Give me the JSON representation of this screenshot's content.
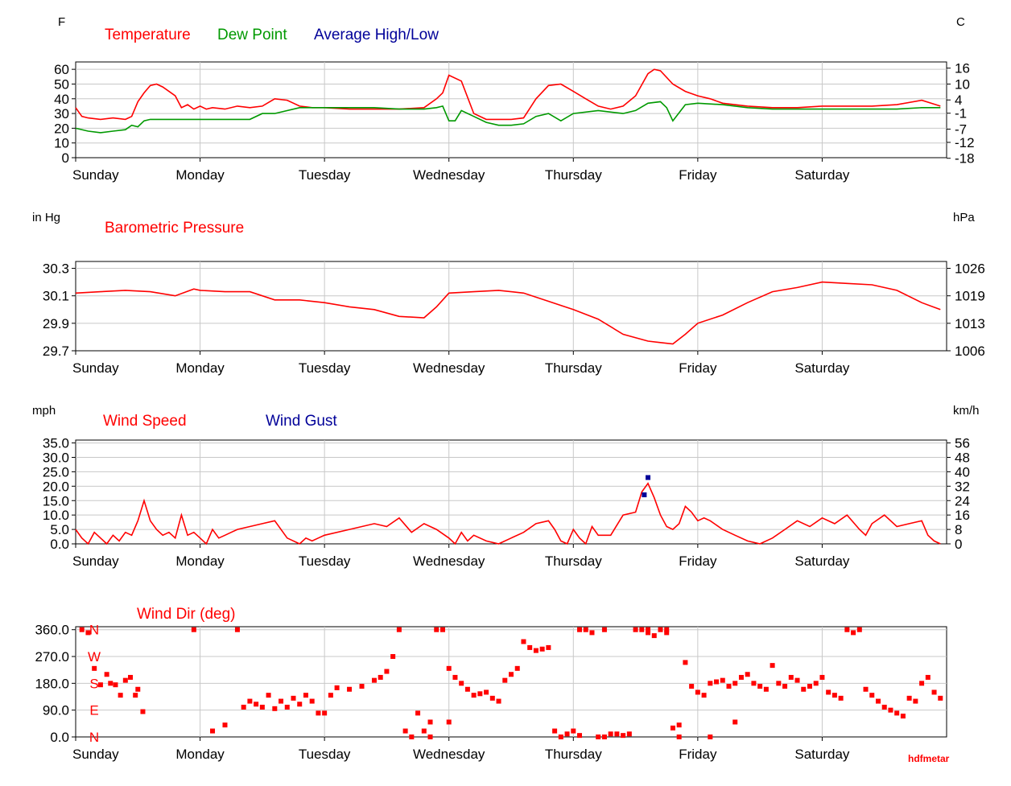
{
  "credit": "hdfmetar",
  "day_labels": [
    "Sunday",
    "Monday",
    "Tuesday",
    "Wednesday",
    "Thursday",
    "Friday",
    "Saturday"
  ],
  "chart_data": [
    {
      "type": "line",
      "left_unit": "F",
      "right_unit": "C",
      "legend": [
        {
          "label": "Temperature",
          "color": "#ff0000"
        },
        {
          "label": "Dew Point",
          "color": "#009900"
        },
        {
          "label": "Average High/Low",
          "color": "#000099"
        }
      ],
      "xlim": [
        0,
        7
      ],
      "ylim": [
        0,
        65
      ],
      "yticks": [
        0,
        10,
        20,
        30,
        40,
        50,
        60
      ],
      "right_ticks": [
        {
          "label": "16",
          "value": 60.8
        },
        {
          "label": "10",
          "value": 50
        },
        {
          "label": "4",
          "value": 39.2
        },
        {
          "label": "-1",
          "value": 30.2
        },
        {
          "label": "-7",
          "value": 19.4
        },
        {
          "label": "-12",
          "value": 10.4
        },
        {
          "label": "-18",
          "value": -0.4
        }
      ],
      "series": [
        {
          "name": "Temperature",
          "color": "#ff0000",
          "x": [
            0,
            0.05,
            0.1,
            0.2,
            0.3,
            0.4,
            0.45,
            0.5,
            0.55,
            0.6,
            0.65,
            0.7,
            0.8,
            0.85,
            0.9,
            0.95,
            1.0,
            1.05,
            1.1,
            1.2,
            1.3,
            1.4,
            1.5,
            1.6,
            1.7,
            1.8,
            1.9,
            2.0,
            2.2,
            2.4,
            2.6,
            2.8,
            2.9,
            2.95,
            3.0,
            3.1,
            3.2,
            3.3,
            3.4,
            3.5,
            3.6,
            3.7,
            3.8,
            3.9,
            4.0,
            4.1,
            4.2,
            4.3,
            4.4,
            4.5,
            4.6,
            4.65,
            4.7,
            4.8,
            4.9,
            5.0,
            5.1,
            5.2,
            5.4,
            5.6,
            5.8,
            6.0,
            6.2,
            6.4,
            6.6,
            6.8,
            6.95
          ],
          "y": [
            34,
            28,
            27,
            26,
            27,
            26,
            28,
            38,
            44,
            49,
            50,
            48,
            42,
            34,
            36,
            33,
            35,
            33,
            34,
            33,
            35,
            34,
            35,
            40,
            39,
            35,
            34,
            34,
            33,
            33,
            33,
            34,
            40,
            44,
            56,
            52,
            30,
            26,
            26,
            26,
            27,
            40,
            49,
            50,
            45,
            40,
            35,
            33,
            35,
            42,
            57,
            60,
            59,
            50,
            45,
            42,
            40,
            37,
            35,
            34,
            34,
            35,
            35,
            35,
            36,
            39,
            35
          ]
        },
        {
          "name": "Dew Point",
          "color": "#009900",
          "x": [
            0,
            0.1,
            0.2,
            0.3,
            0.4,
            0.45,
            0.5,
            0.55,
            0.6,
            0.7,
            0.8,
            1.0,
            1.2,
            1.4,
            1.5,
            1.6,
            1.8,
            2.0,
            2.2,
            2.4,
            2.6,
            2.8,
            2.9,
            2.95,
            3.0,
            3.05,
            3.1,
            3.2,
            3.3,
            3.4,
            3.5,
            3.6,
            3.7,
            3.8,
            3.9,
            4.0,
            4.2,
            4.4,
            4.5,
            4.6,
            4.7,
            4.75,
            4.8,
            4.9,
            5.0,
            5.2,
            5.4,
            5.6,
            5.8,
            6.0,
            6.2,
            6.4,
            6.6,
            6.8,
            6.95
          ],
          "y": [
            20,
            18,
            17,
            18,
            19,
            22,
            21,
            25,
            26,
            26,
            26,
            26,
            26,
            26,
            30,
            30,
            34,
            34,
            34,
            34,
            33,
            33,
            34,
            35,
            25,
            25,
            32,
            28,
            24,
            22,
            22,
            23,
            28,
            30,
            25,
            30,
            32,
            30,
            32,
            37,
            38,
            34,
            25,
            36,
            37,
            36,
            34,
            33,
            33,
            33,
            33,
            33,
            33,
            34,
            34
          ]
        }
      ]
    },
    {
      "type": "line",
      "left_unit": "in Hg",
      "right_unit": "hPa",
      "legend": [
        {
          "label": "Barometric Pressure",
          "color": "#ff0000"
        }
      ],
      "xlim": [
        0,
        7
      ],
      "ylim": [
        29.7,
        30.35
      ],
      "yticks": [
        29.7,
        29.9,
        30.1,
        30.3
      ],
      "ytick_labels": [
        "29.7",
        "29.9",
        "30.1",
        "30.3"
      ],
      "right_ticks": [
        {
          "label": "1006",
          "value": 29.7
        },
        {
          "label": "1013",
          "value": 29.9
        },
        {
          "label": "1019",
          "value": 30.1
        },
        {
          "label": "1026",
          "value": 30.3
        }
      ],
      "series": [
        {
          "name": "Barometric Pressure",
          "color": "#ff0000",
          "x": [
            0,
            0.2,
            0.4,
            0.6,
            0.8,
            0.95,
            1.0,
            1.2,
            1.4,
            1.6,
            1.8,
            2.0,
            2.2,
            2.4,
            2.6,
            2.8,
            2.9,
            3.0,
            3.2,
            3.4,
            3.6,
            3.8,
            4.0,
            4.2,
            4.4,
            4.6,
            4.7,
            4.8,
            4.9,
            5.0,
            5.2,
            5.4,
            5.6,
            5.8,
            6.0,
            6.2,
            6.4,
            6.6,
            6.8,
            6.95
          ],
          "y": [
            30.12,
            30.13,
            30.14,
            30.13,
            30.1,
            30.15,
            30.14,
            30.13,
            30.13,
            30.07,
            30.07,
            30.05,
            30.02,
            30.0,
            29.95,
            29.94,
            30.02,
            30.12,
            30.13,
            30.14,
            30.12,
            30.06,
            30.0,
            29.93,
            29.82,
            29.77,
            29.76,
            29.75,
            29.82,
            29.9,
            29.96,
            30.05,
            30.13,
            30.16,
            30.2,
            30.19,
            30.18,
            30.14,
            30.05,
            30.0
          ]
        }
      ]
    },
    {
      "type": "line",
      "left_unit": "mph",
      "right_unit": "km/h",
      "legend": [
        {
          "label": "Wind Speed",
          "color": "#ff0000"
        },
        {
          "label": "Wind Gust",
          "color": "#000099"
        }
      ],
      "xlim": [
        0,
        7
      ],
      "ylim": [
        0,
        36
      ],
      "yticks": [
        0,
        5,
        10,
        15,
        20,
        25,
        30,
        35
      ],
      "ytick_labels": [
        "0.0",
        "5.0",
        "10.0",
        "15.0",
        "20.0",
        "25.0",
        "30.0",
        "35.0"
      ],
      "right_ticks": [
        {
          "label": "0",
          "value": 0
        },
        {
          "label": "8",
          "value": 5
        },
        {
          "label": "16",
          "value": 10
        },
        {
          "label": "24",
          "value": 15
        },
        {
          "label": "32",
          "value": 20
        },
        {
          "label": "40",
          "value": 25
        },
        {
          "label": "48",
          "value": 30
        },
        {
          "label": "56",
          "value": 35
        }
      ],
      "series": [
        {
          "name": "Wind Speed",
          "color": "#ff0000",
          "x": [
            0,
            0.05,
            0.1,
            0.15,
            0.2,
            0.25,
            0.3,
            0.35,
            0.4,
            0.45,
            0.5,
            0.55,
            0.6,
            0.65,
            0.7,
            0.75,
            0.8,
            0.85,
            0.9,
            0.95,
            1.0,
            1.05,
            1.1,
            1.15,
            1.2,
            1.25,
            1.3,
            1.4,
            1.5,
            1.6,
            1.7,
            1.8,
            1.85,
            1.9,
            1.95,
            2.0,
            2.2,
            2.4,
            2.5,
            2.6,
            2.7,
            2.8,
            2.9,
            3.0,
            3.05,
            3.1,
            3.15,
            3.2,
            3.3,
            3.4,
            3.5,
            3.6,
            3.7,
            3.8,
            3.85,
            3.9,
            3.95,
            4.0,
            4.05,
            4.1,
            4.15,
            4.2,
            4.3,
            4.4,
            4.5,
            4.55,
            4.6,
            4.65,
            4.7,
            4.75,
            4.8,
            4.85,
            4.9,
            4.95,
            5.0,
            5.05,
            5.1,
            5.2,
            5.3,
            5.4,
            5.5,
            5.6,
            5.7,
            5.8,
            5.9,
            6.0,
            6.1,
            6.2,
            6.3,
            6.35,
            6.4,
            6.5,
            6.6,
            6.7,
            6.8,
            6.85,
            6.9,
            6.95
          ],
          "y": [
            5,
            2,
            0,
            4,
            2,
            0,
            3,
            1,
            4,
            3,
            8,
            15,
            8,
            5,
            3,
            4,
            2,
            10,
            3,
            4,
            2,
            0,
            5,
            2,
            3,
            4,
            5,
            6,
            7,
            8,
            2,
            0,
            2,
            1,
            2,
            3,
            5,
            7,
            6,
            9,
            4,
            7,
            5,
            2,
            0,
            4,
            1,
            3,
            1,
            0,
            2,
            4,
            7,
            8,
            5,
            1,
            0,
            5,
            2,
            0,
            6,
            3,
            3,
            10,
            11,
            18,
            21,
            16,
            10,
            6,
            5,
            7,
            13,
            11,
            8,
            9,
            8,
            5,
            3,
            1,
            0,
            2,
            5,
            8,
            6,
            9,
            7,
            10,
            5,
            3,
            7,
            10,
            6,
            7,
            8,
            3,
            1,
            0
          ]
        },
        {
          "name": "Wind Gust",
          "color": "#000099",
          "x": [
            4.57,
            4.6
          ],
          "y": [
            17,
            23
          ]
        }
      ]
    },
    {
      "type": "scatter",
      "title": "Wind Dir (deg)",
      "xlim": [
        0,
        7
      ],
      "ylim": [
        0,
        370
      ],
      "yticks": [
        0,
        90,
        180,
        270,
        360
      ],
      "ytick_labels": [
        "0.0",
        "90.0",
        "180.0",
        "270.0",
        "360.0"
      ],
      "compass_labels": [
        {
          "label": "N",
          "value": 360
        },
        {
          "label": "W",
          "value": 270
        },
        {
          "label": "S",
          "value": 180
        },
        {
          "label": "E",
          "value": 90
        },
        {
          "label": "N",
          "value": 0
        }
      ],
      "series": [
        {
          "name": "Wind Dir (deg)",
          "color": "#ff0000",
          "x": [
            0.05,
            0.1,
            0.15,
            0.2,
            0.25,
            0.28,
            0.32,
            0.36,
            0.4,
            0.44,
            0.48,
            0.5,
            0.54,
            0.95,
            1.1,
            1.2,
            1.3,
            1.35,
            1.4,
            1.45,
            1.5,
            1.55,
            1.6,
            1.65,
            1.7,
            1.75,
            1.8,
            1.85,
            1.9,
            1.95,
            2.0,
            2.05,
            2.1,
            2.2,
            2.3,
            2.4,
            2.45,
            2.5,
            2.55,
            2.6,
            2.65,
            2.7,
            2.75,
            2.8,
            2.85,
            2.9,
            2.95,
            3.0,
            3.05,
            3.1,
            3.15,
            3.2,
            3.25,
            3.3,
            3.35,
            3.4,
            3.45,
            3.5,
            3.55,
            3.6,
            3.65,
            3.7,
            3.75,
            3.8,
            3.85,
            3.9,
            3.95,
            4.0,
            4.05,
            4.1,
            4.15,
            4.2,
            4.25,
            4.3,
            4.35,
            4.4,
            4.45,
            4.5,
            4.55,
            4.6,
            4.65,
            4.7,
            4.75,
            4.8,
            4.85,
            4.9,
            4.95,
            5.0,
            5.05,
            5.1,
            5.15,
            5.2,
            5.25,
            5.3,
            5.35,
            5.4,
            5.45,
            5.5,
            5.55,
            5.6,
            5.65,
            5.7,
            5.75,
            5.8,
            5.85,
            5.9,
            5.95,
            6.0,
            6.05,
            6.1,
            6.15,
            6.2,
            6.25,
            6.3,
            6.35,
            6.4,
            6.45,
            6.5,
            6.55,
            6.6,
            6.65,
            6.7,
            6.75,
            6.8,
            6.85,
            6.9,
            6.95,
            2.85,
            3.0,
            4.05,
            4.25,
            4.6,
            4.75,
            4.85,
            5.1,
            5.3
          ],
          "y": [
            360,
            350,
            230,
            175,
            210,
            180,
            175,
            140,
            190,
            200,
            140,
            160,
            85,
            360,
            20,
            40,
            360,
            100,
            120,
            110,
            100,
            140,
            95,
            120,
            100,
            130,
            110,
            140,
            120,
            80,
            80,
            140,
            165,
            160,
            170,
            190,
            200,
            220,
            270,
            360,
            20,
            0,
            80,
            20,
            0,
            360,
            360,
            230,
            200,
            180,
            160,
            140,
            145,
            150,
            130,
            120,
            190,
            210,
            230,
            320,
            300,
            290,
            295,
            300,
            20,
            0,
            10,
            20,
            360,
            360,
            350,
            0,
            0,
            10,
            10,
            5,
            10,
            360,
            360,
            350,
            340,
            360,
            360,
            30,
            40,
            250,
            170,
            150,
            140,
            180,
            185,
            190,
            170,
            180,
            200,
            210,
            180,
            170,
            160,
            240,
            180,
            170,
            200,
            190,
            160,
            170,
            180,
            200,
            150,
            140,
            130,
            360,
            350,
            360,
            160,
            140,
            120,
            100,
            90,
            80,
            70,
            130,
            120,
            180,
            200,
            150,
            130,
            50,
            50,
            5,
            360,
            360,
            350,
            0,
            0,
            50
          ]
        }
      ]
    }
  ]
}
